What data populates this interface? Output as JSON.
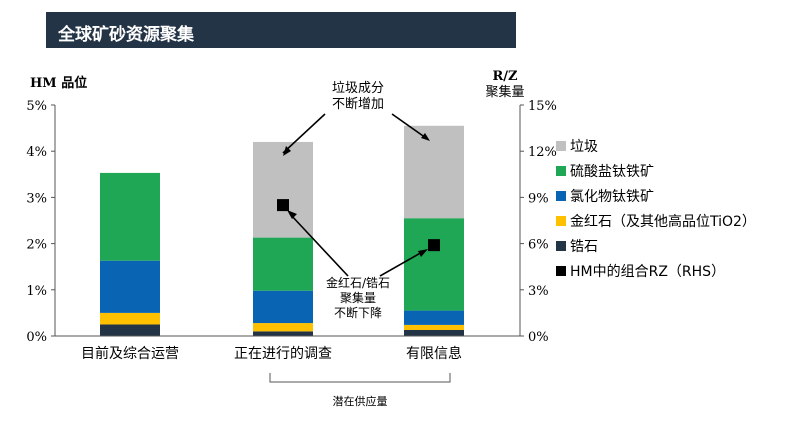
{
  "header": {
    "title": "全球矿砂资源聚集"
  },
  "chart_data": {
    "type": "bar",
    "stacked": true,
    "left_axis": {
      "label": "HM 品位",
      "ticks": [
        "0%",
        "1%",
        "2%",
        "3%",
        "4%",
        "5%"
      ],
      "range": [
        0,
        5
      ]
    },
    "right_axis": {
      "label_line1": "R/Z",
      "label_line2": "聚集量",
      "ticks": [
        "0%",
        "3%",
        "6%",
        "9%",
        "12%",
        "15%"
      ],
      "range": [
        0,
        15
      ]
    },
    "categories": [
      "目前及综合运营",
      "正在进行的调查",
      "有限信息"
    ],
    "series": [
      {
        "name": "锆石",
        "color": "#243447",
        "values": [
          0.25,
          0.1,
          0.13
        ]
      },
      {
        "name": "金红石（及其他高品位TiO2）",
        "color": "#ffc000",
        "values": [
          0.25,
          0.18,
          0.11
        ]
      },
      {
        "name": "氯化物钛铁矿",
        "color": "#0a64b4",
        "values": [
          1.13,
          0.7,
          0.31
        ]
      },
      {
        "name": "硫酸盐钛铁矿",
        "color": "#1fa756",
        "values": [
          1.9,
          1.15,
          2.0
        ]
      },
      {
        "name": "垃圾",
        "color": "#c0c0c0",
        "values": [
          0,
          2.07,
          2.0
        ]
      }
    ],
    "rz_series": {
      "name": "HM中的组合RZ（RHS）",
      "color": "#000000",
      "values": [
        null,
        8.5,
        5.9
      ]
    },
    "annotations": {
      "waste_line1": "垃圾成分",
      "waste_line2": "不断增加",
      "rz_line1": "金红石/锆石",
      "rz_line2": "聚集量",
      "rz_line3": "不断下降",
      "bracket": "潜在供应量"
    },
    "legend_position": "right"
  }
}
